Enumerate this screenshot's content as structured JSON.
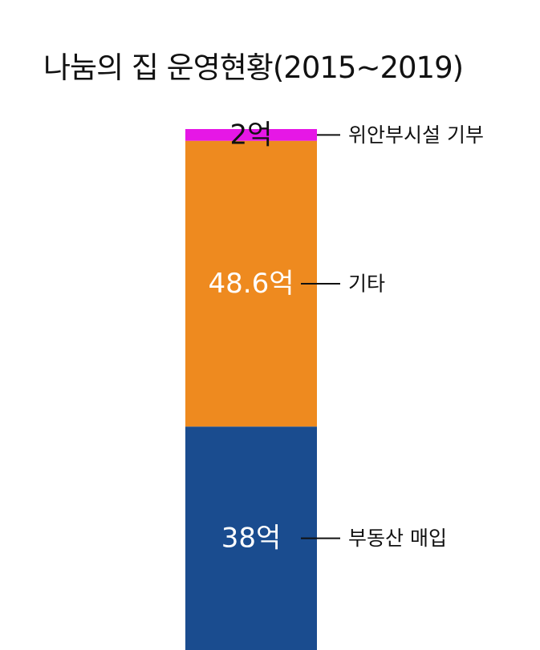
{
  "chart_data": {
    "type": "bar",
    "stacked": true,
    "title": "나눔의 집 운영현황(2015~2019)",
    "unit": "억",
    "segments": [
      {
        "category": "부동산 매입",
        "value": 38,
        "label": "38억",
        "color": "#1a4c8f",
        "label_color": "#ffffff"
      },
      {
        "category": "기타",
        "value": 48.6,
        "label": "48.6억",
        "color": "#ee8a1f",
        "label_color": "#ffffff"
      },
      {
        "category": "위안부시설 기부",
        "value": 2,
        "label": "2억",
        "color": "#e617e6",
        "label_color": "#111111"
      }
    ]
  }
}
